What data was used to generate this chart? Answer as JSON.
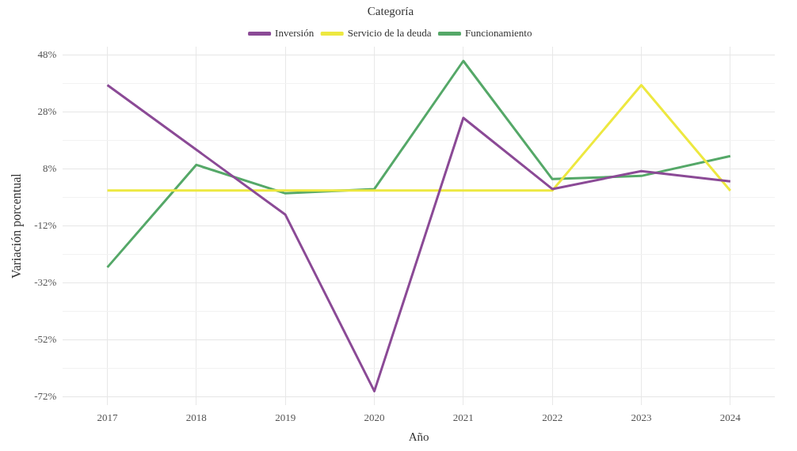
{
  "chart_data": {
    "type": "line",
    "xlabel": "Año",
    "ylabel": "Variación porcentual",
    "legend_title": "Categoría",
    "legend": "top",
    "grid": true,
    "line_style": "solid",
    "marker": "none",
    "categories": [
      "2017",
      "2018",
      "2019",
      "2020",
      "2021",
      "2022",
      "2023",
      "2024"
    ],
    "ylim": [
      -75,
      51
    ],
    "yticks": [
      {
        "value": -72,
        "label": "-72%"
      },
      {
        "value": -62,
        "label": null
      },
      {
        "value": -52,
        "label": "-52%"
      },
      {
        "value": -42,
        "label": null
      },
      {
        "value": -32,
        "label": "-32%"
      },
      {
        "value": -22,
        "label": null
      },
      {
        "value": -12,
        "label": "-12%"
      },
      {
        "value": -2,
        "label": null
      },
      {
        "value": 8,
        "label": "8%"
      },
      {
        "value": 18,
        "label": null
      },
      {
        "value": 28,
        "label": "28%"
      },
      {
        "value": 38,
        "label": null
      },
      {
        "value": 48,
        "label": "48%"
      }
    ],
    "series": [
      {
        "name": "Inversión",
        "color": "#8b4a96",
        "values": [
          37.5,
          14.8,
          -8,
          -70,
          26,
          1,
          7.3,
          3.7
        ]
      },
      {
        "name": "Servicio de la deuda",
        "color": "#ede840",
        "values": [
          0.5,
          0.5,
          0.5,
          0.5,
          0.5,
          0.5,
          37.5,
          0.4
        ]
      },
      {
        "name": "Funcionamiento",
        "color": "#55a868",
        "values": [
          -26.5,
          9.5,
          -0.5,
          1,
          46,
          4.5,
          5.6,
          12.6
        ]
      }
    ]
  }
}
